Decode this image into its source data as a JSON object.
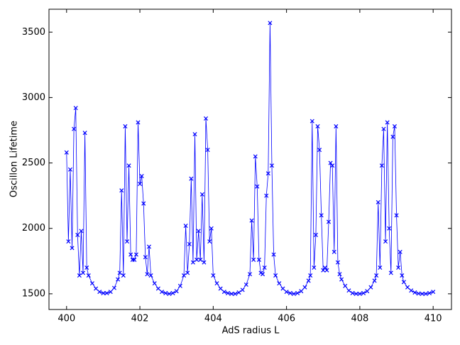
{
  "chart_data": {
    "type": "line",
    "x_label": "AdS radius L",
    "y_label": "Oscillon Lifetime",
    "color": "#0000ff",
    "marker": "x",
    "xlim": [
      399.52,
      410.5
    ],
    "ylim": [
      1380,
      3675
    ],
    "xticks": [
      400,
      402,
      404,
      406,
      408,
      410
    ],
    "yticks": [
      1500,
      2000,
      2500,
      3000,
      3500
    ],
    "x": [
      400.0,
      400.05,
      400.1,
      400.15,
      400.2,
      400.25,
      400.3,
      400.35,
      400.4,
      400.45,
      400.5,
      400.55,
      400.6,
      400.7,
      400.8,
      400.9,
      401.0,
      401.1,
      401.2,
      401.3,
      401.4,
      401.45,
      401.5,
      401.55,
      401.6,
      401.65,
      401.7,
      401.75,
      401.8,
      401.85,
      401.9,
      401.95,
      402.0,
      402.05,
      402.1,
      402.15,
      402.2,
      402.25,
      402.3,
      402.4,
      402.5,
      402.6,
      402.7,
      402.8,
      402.9,
      403.0,
      403.1,
      403.2,
      403.25,
      403.3,
      403.35,
      403.4,
      403.45,
      403.5,
      403.55,
      403.6,
      403.65,
      403.7,
      403.75,
      403.8,
      403.85,
      403.9,
      403.95,
      404.0,
      404.1,
      404.2,
      404.3,
      404.4,
      404.5,
      404.6,
      404.7,
      404.8,
      404.9,
      405.0,
      405.05,
      405.1,
      405.15,
      405.2,
      405.25,
      405.3,
      405.35,
      405.4,
      405.45,
      405.5,
      405.55,
      405.6,
      405.65,
      405.7,
      405.8,
      405.9,
      406.0,
      406.1,
      406.2,
      406.3,
      406.4,
      406.5,
      406.6,
      406.65,
      406.7,
      406.75,
      406.8,
      406.85,
      406.9,
      406.95,
      407.0,
      407.05,
      407.1,
      407.15,
      407.2,
      407.25,
      407.3,
      407.35,
      407.4,
      407.45,
      407.5,
      407.6,
      407.7,
      407.8,
      407.9,
      408.0,
      408.1,
      408.2,
      408.3,
      408.4,
      408.45,
      408.5,
      408.55,
      408.6,
      408.65,
      408.7,
      408.75,
      408.8,
      408.85,
      408.9,
      408.95,
      409.0,
      409.05,
      409.1,
      409.15,
      409.2,
      409.3,
      409.4,
      409.5,
      409.6,
      409.7,
      409.8,
      409.9,
      410.0
    ],
    "values": [
      2580,
      1900,
      2450,
      1850,
      2760,
      2920,
      1950,
      1640,
      1980,
      1660,
      2730,
      1700,
      1640,
      1580,
      1540,
      1515,
      1505,
      1505,
      1515,
      1545,
      1610,
      1660,
      2290,
      1640,
      2780,
      1900,
      2480,
      1800,
      1760,
      1760,
      1800,
      2810,
      2340,
      2400,
      2190,
      1780,
      1650,
      1860,
      1640,
      1580,
      1540,
      1515,
      1505,
      1500,
      1505,
      1520,
      1560,
      1640,
      2020,
      1660,
      1880,
      2380,
      1740,
      2720,
      1760,
      1980,
      1760,
      2260,
      1740,
      2840,
      2600,
      1900,
      2000,
      1640,
      1580,
      1540,
      1515,
      1505,
      1500,
      1500,
      1510,
      1530,
      1570,
      1650,
      2060,
      1760,
      2550,
      2320,
      1760,
      1660,
      1650,
      1700,
      2250,
      2420,
      3570,
      2480,
      1800,
      1640,
      1580,
      1540,
      1515,
      1505,
      1500,
      1505,
      1520,
      1550,
      1600,
      1640,
      2820,
      1700,
      1950,
      2780,
      2600,
      2100,
      1680,
      1700,
      1680,
      2050,
      2500,
      2480,
      1820,
      2780,
      1740,
      1650,
      1610,
      1560,
      1525,
      1505,
      1500,
      1500,
      1505,
      1520,
      1550,
      1600,
      1640,
      2200,
      1700,
      2480,
      2760,
      1900,
      2810,
      2000,
      1660,
      2700,
      2780,
      2100,
      1700,
      1820,
      1640,
      1590,
      1550,
      1525,
      1510,
      1502,
      1500,
      1500,
      1505,
      1515
    ]
  }
}
